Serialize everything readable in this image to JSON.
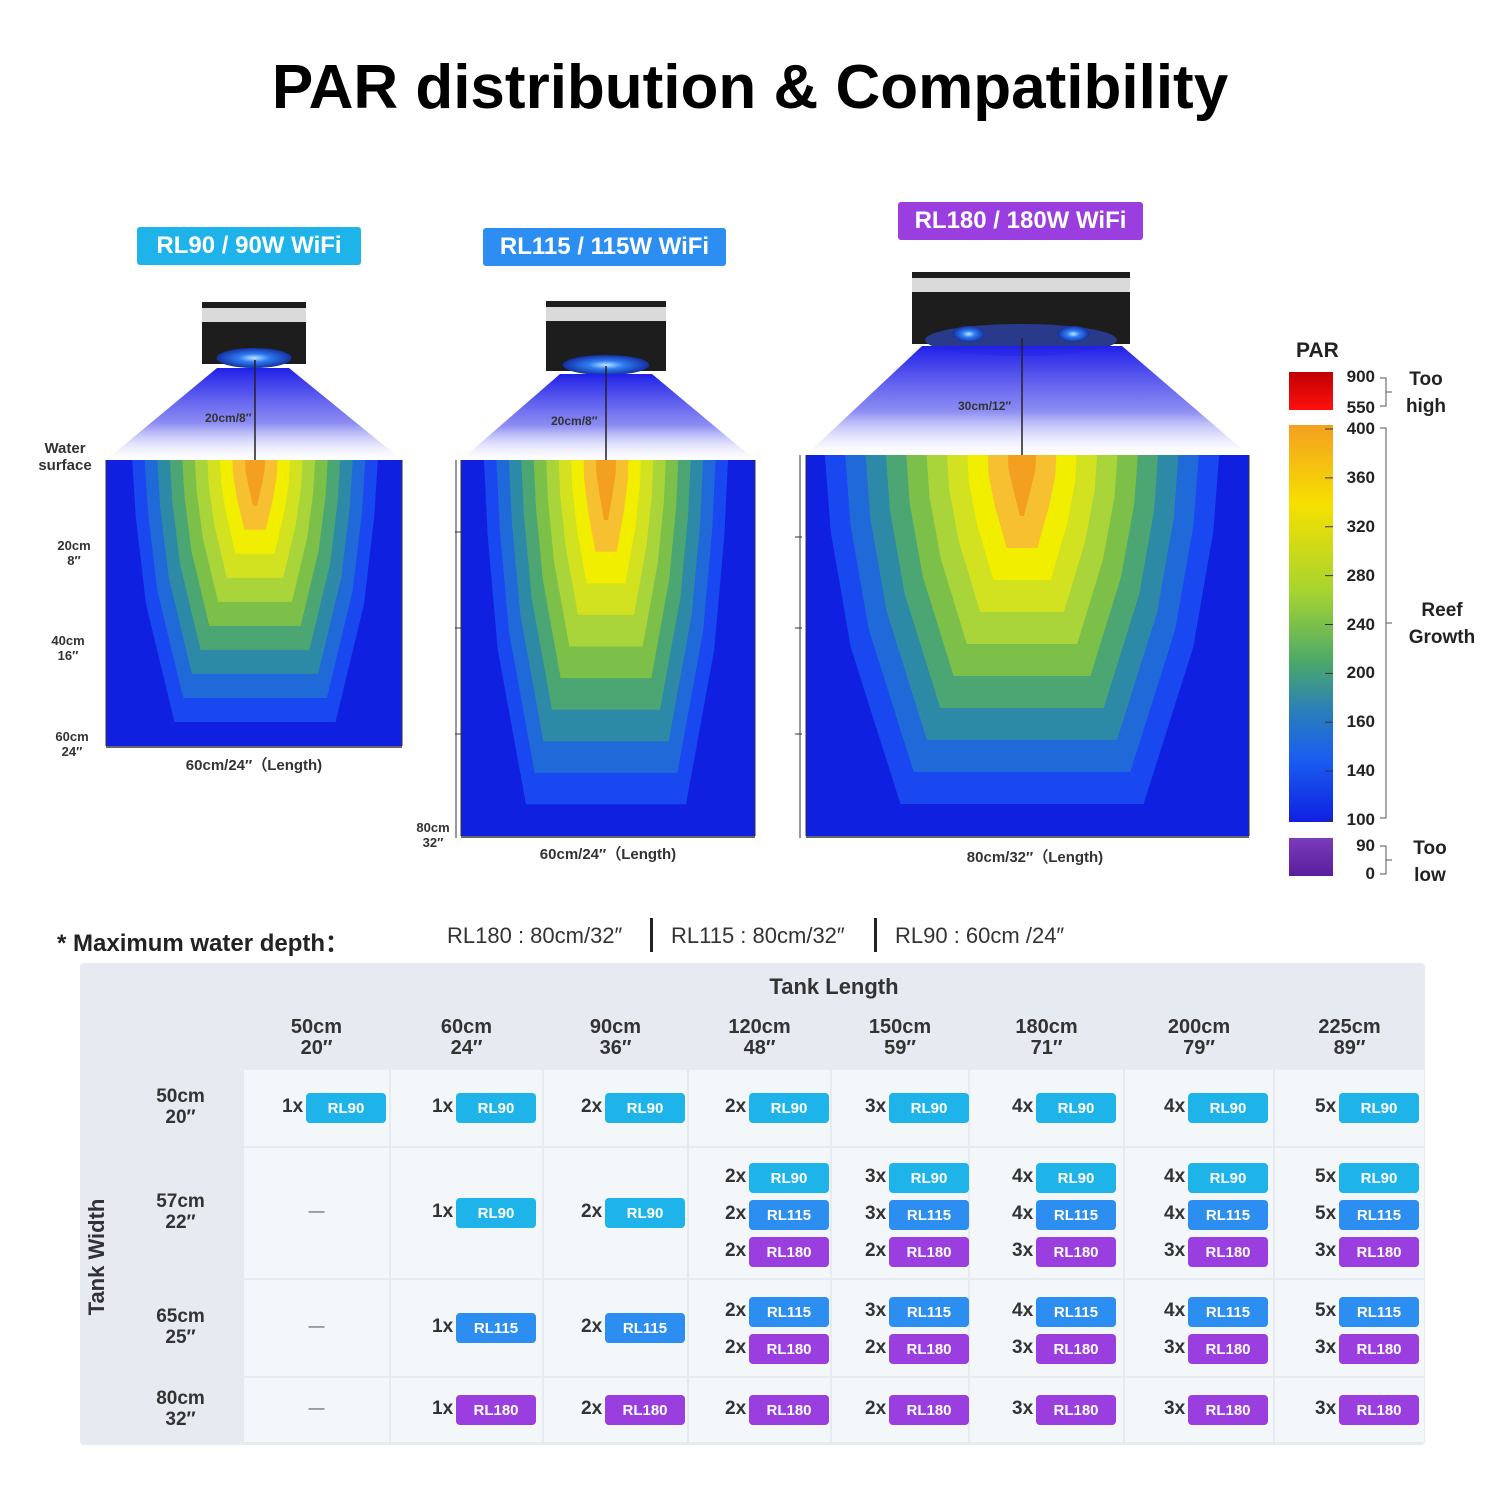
{
  "title": "PAR distribution & Compatibility",
  "colors": {
    "rl90": "#1eb4ea",
    "rl115": "#2c8ef0",
    "rl180": "#9a3ee0"
  },
  "models": [
    {
      "label": "RL90 / 90W WiFi",
      "color": "#1eb4ea",
      "height_label": "20cm/8″",
      "length_label": "60cm/24″（Length)"
    },
    {
      "label": "RL115 / 115W WiFi",
      "color": "#2c8ef0",
      "height_label": "20cm/8″",
      "length_label": "60cm/24″（Length)"
    },
    {
      "label": "RL180 / 180W WiFi",
      "color": "#9a3ee0",
      "height_label": "30cm/12″",
      "length_label": "80cm/32″（Length)"
    }
  ],
  "left_axis": {
    "water_surface": [
      "Water",
      "surface"
    ],
    "depths": [
      [
        "20cm",
        "8″"
      ],
      [
        "40cm",
        "16″"
      ],
      [
        "60cm",
        "24″"
      ]
    ],
    "rl115_depth": [
      "80cm",
      "32″"
    ]
  },
  "legend": {
    "title": "PAR",
    "high_ticks": [
      "900",
      "550"
    ],
    "high_label": [
      "Too",
      "high"
    ],
    "ticks": [
      "400",
      "360",
      "320",
      "280",
      "240",
      "200",
      "160",
      "140",
      "100"
    ],
    "mid_label": [
      "Reef",
      "Growth"
    ],
    "low_ticks": [
      "90",
      "0"
    ],
    "low_label": [
      "Too",
      "low"
    ]
  },
  "max_depth": {
    "label": "* Maximum water depth：",
    "values": [
      "RL180 : 80cm/32″",
      "RL115 : 80cm/32″",
      "RL90 : 60cm /24″"
    ]
  },
  "table": {
    "length_title": "Tank Length",
    "width_title": "Tank Width",
    "lengths": [
      [
        "50cm",
        "20″"
      ],
      [
        "60cm",
        "24″"
      ],
      [
        "90cm",
        "36″"
      ],
      [
        "120cm",
        "48″"
      ],
      [
        "150cm",
        "59″"
      ],
      [
        "180cm",
        "71″"
      ],
      [
        "200cm",
        "79″"
      ],
      [
        "225cm",
        "89″"
      ]
    ],
    "widths": [
      [
        "50cm",
        "20″"
      ],
      [
        "57cm",
        "22″"
      ],
      [
        "65cm",
        "25″"
      ],
      [
        "80cm",
        "32″"
      ]
    ],
    "dash": "—",
    "rows": [
      [
        [
          [
            "1x",
            "RL90"
          ]
        ],
        [
          [
            "1x",
            "RL90"
          ]
        ],
        [
          [
            "2x",
            "RL90"
          ]
        ],
        [
          [
            "2x",
            "RL90"
          ]
        ],
        [
          [
            "3x",
            "RL90"
          ]
        ],
        [
          [
            "4x",
            "RL90"
          ]
        ],
        [
          [
            "4x",
            "RL90"
          ]
        ],
        [
          [
            "5x",
            "RL90"
          ]
        ]
      ],
      [
        [],
        [
          [
            "1x",
            "RL90"
          ]
        ],
        [
          [
            "2x",
            "RL90"
          ]
        ],
        [
          [
            "2x",
            "RL90"
          ],
          [
            "2x",
            "RL115"
          ],
          [
            "2x",
            "RL180"
          ]
        ],
        [
          [
            "3x",
            "RL90"
          ],
          [
            "3x",
            "RL115"
          ],
          [
            "2x",
            "RL180"
          ]
        ],
        [
          [
            "4x",
            "RL90"
          ],
          [
            "4x",
            "RL115"
          ],
          [
            "3x",
            "RL180"
          ]
        ],
        [
          [
            "4x",
            "RL90"
          ],
          [
            "4x",
            "RL115"
          ],
          [
            "3x",
            "RL180"
          ]
        ],
        [
          [
            "5x",
            "RL90"
          ],
          [
            "5x",
            "RL115"
          ],
          [
            "3x",
            "RL180"
          ]
        ]
      ],
      [
        [],
        [
          [
            "1x",
            "RL115"
          ]
        ],
        [
          [
            "2x",
            "RL115"
          ]
        ],
        [
          [
            "2x",
            "RL115"
          ],
          [
            "2x",
            "RL180"
          ]
        ],
        [
          [
            "3x",
            "RL115"
          ],
          [
            "2x",
            "RL180"
          ]
        ],
        [
          [
            "4x",
            "RL115"
          ],
          [
            "3x",
            "RL180"
          ]
        ],
        [
          [
            "4x",
            "RL115"
          ],
          [
            "3x",
            "RL180"
          ]
        ],
        [
          [
            "5x",
            "RL115"
          ],
          [
            "3x",
            "RL180"
          ]
        ]
      ],
      [
        [],
        [
          [
            "1x",
            "RL180"
          ]
        ],
        [
          [
            "2x",
            "RL180"
          ]
        ],
        [
          [
            "2x",
            "RL180"
          ]
        ],
        [
          [
            "2x",
            "RL180"
          ]
        ],
        [
          [
            "3x",
            "RL180"
          ]
        ],
        [
          [
            "3x",
            "RL180"
          ]
        ],
        [
          [
            "3x",
            "RL180"
          ]
        ]
      ]
    ]
  }
}
